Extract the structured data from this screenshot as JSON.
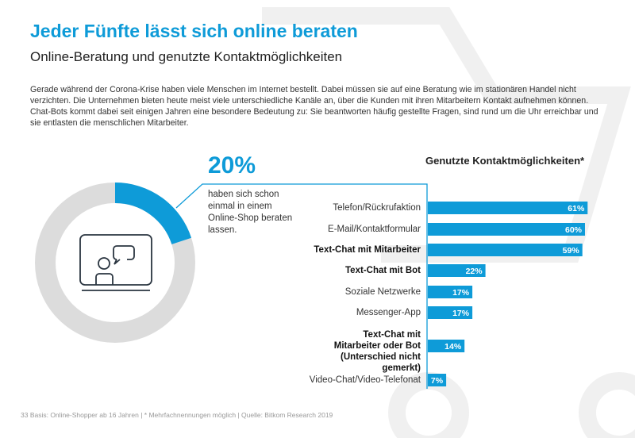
{
  "title": "Jeder Fünfte lässt sich online beraten",
  "subtitle": "Online-Beratung und genutzte Kontaktmöglichkeiten",
  "intro": "Gerade während der Corona-Krise haben viele Menschen im Internet bestellt. Dabei müssen sie auf eine Beratung wie im stationären Handel nicht verzichten. Die Unternehmen bieten heute meist viele unterschiedliche Kanäle an, über die Kunden mit ihren Mitarbeitern Kontakt aufnehmen können. Chat-Bots kommt dabei seit einigen Jahren eine besondere Bedeutung zu: Sie beantworten häufig gestellte Fragen, sind rund um die Uhr erreichbar und sie entlasten die menschlichen Mitarbeiter.",
  "footer": "33   Basis: Online-Shopper ab 16 Jahren | * Mehrfachnennungen möglich | Quelle: Bitkom Research 2019",
  "colors": {
    "accent": "#0e9bd8",
    "donut_rest": "#dcdcdc"
  },
  "chart_data": [
    {
      "type": "pie",
      "variant": "donut",
      "value": 20,
      "value_label": "20%",
      "description": "haben sich schon einmal in einem Online-Shop beraten lassen.",
      "icon": "video-chat-icon"
    },
    {
      "type": "bar",
      "orientation": "horizontal",
      "title": "Genutzte Kontaktmöglichkeiten*",
      "categories": [
        "Telefon/Rückrufaktion",
        "E-Mail/Kontaktformular",
        "Text-Chat mit Mitarbeiter",
        "Text-Chat mit Bot",
        "Soziale Netzwerke",
        "Messenger-App",
        "Text-Chat mit Mitarbeiter oder Bot (Unterschied nicht gemerkt)",
        "Video-Chat/Video-Telefonat"
      ],
      "bold": [
        false,
        false,
        true,
        true,
        false,
        false,
        true,
        false
      ],
      "values": [
        61,
        60,
        59,
        22,
        17,
        17,
        14,
        7
      ],
      "value_labels": [
        "61%",
        "60%",
        "59%",
        "22%",
        "17%",
        "17%",
        "14%",
        "7%"
      ],
      "unit": "%"
    }
  ]
}
